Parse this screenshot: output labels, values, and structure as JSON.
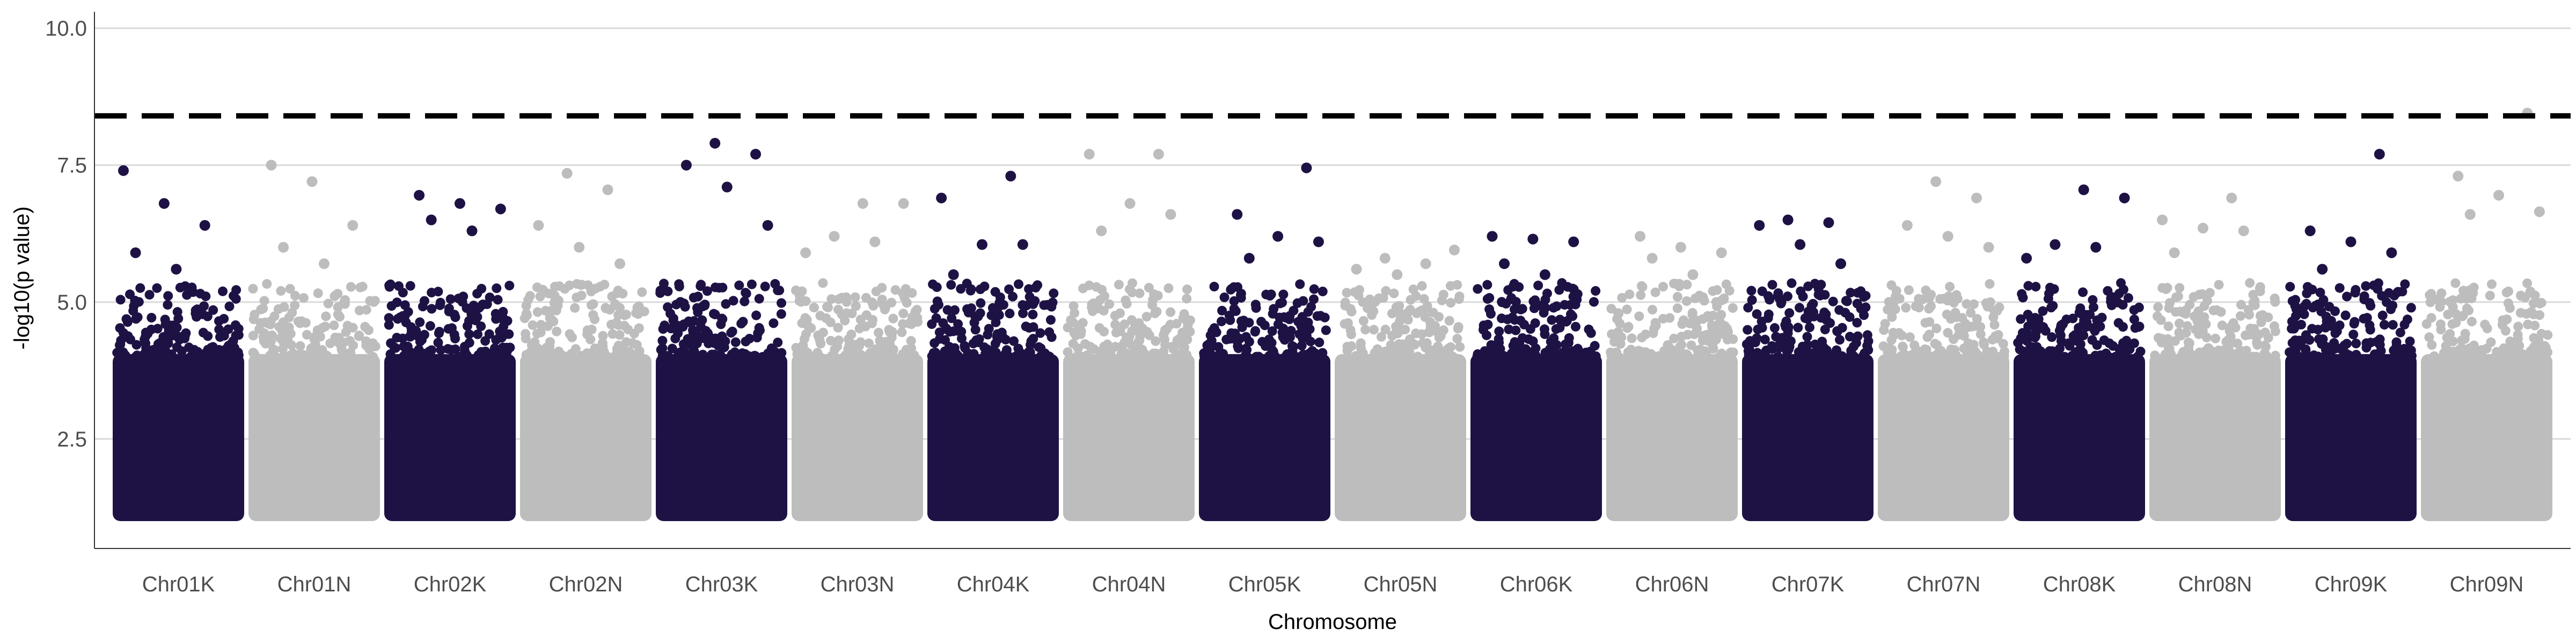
{
  "chart_data": {
    "type": "scatter",
    "subtype": "manhattan",
    "xlabel": "Chromosome",
    "ylabel": "-log10(p value)",
    "ylim": [
      0.5,
      10.3
    ],
    "yticks": [
      "2.5",
      "5.0",
      "7.5",
      "10.0"
    ],
    "ytick_values": [
      2.5,
      5.0,
      7.5,
      10.0
    ],
    "threshold": 8.4,
    "threshold_style": "dashed",
    "grid": "horizontal major",
    "legend": "none",
    "colors": {
      "dark": "#1e1245",
      "light": "#bdbdbd",
      "threshold": "#000000",
      "grid": "#d9d9d9"
    },
    "chromosomes": [
      {
        "name": "Chr01K",
        "color": "dark",
        "top_points": [
          7.4,
          6.8,
          6.4,
          5.9,
          5.6
        ]
      },
      {
        "name": "Chr01N",
        "color": "light",
        "top_points": [
          7.5,
          7.2,
          6.4,
          6.0,
          5.7
        ]
      },
      {
        "name": "Chr02K",
        "color": "dark",
        "top_points": [
          6.95,
          6.8,
          6.7,
          6.5,
          6.3
        ]
      },
      {
        "name": "Chr02N",
        "color": "light",
        "top_points": [
          7.35,
          7.05,
          6.4,
          6.0,
          5.7
        ]
      },
      {
        "name": "Chr03K",
        "color": "dark",
        "top_points": [
          7.9,
          7.7,
          7.5,
          7.1,
          6.4
        ]
      },
      {
        "name": "Chr03N",
        "color": "light",
        "top_points": [
          6.8,
          6.8,
          6.2,
          6.1,
          5.9
        ]
      },
      {
        "name": "Chr04K",
        "color": "dark",
        "top_points": [
          7.3,
          6.9,
          6.05,
          6.05,
          5.5
        ]
      },
      {
        "name": "Chr04N",
        "color": "light",
        "top_points": [
          7.7,
          7.7,
          6.8,
          6.6,
          6.3
        ]
      },
      {
        "name": "Chr05K",
        "color": "dark",
        "top_points": [
          7.45,
          6.6,
          6.2,
          6.1,
          5.8
        ]
      },
      {
        "name": "Chr05N",
        "color": "light",
        "top_points": [
          5.95,
          5.8,
          5.7,
          5.6,
          5.5
        ]
      },
      {
        "name": "Chr06K",
        "color": "dark",
        "top_points": [
          6.2,
          6.15,
          6.1,
          5.7,
          5.5
        ]
      },
      {
        "name": "Chr06N",
        "color": "light",
        "top_points": [
          6.2,
          6.0,
          5.9,
          5.8,
          5.5
        ]
      },
      {
        "name": "Chr07K",
        "color": "dark",
        "top_points": [
          6.5,
          6.45,
          6.4,
          6.05,
          5.7
        ]
      },
      {
        "name": "Chr07N",
        "color": "light",
        "top_points": [
          7.2,
          6.9,
          6.4,
          6.2,
          6.0
        ]
      },
      {
        "name": "Chr08K",
        "color": "dark",
        "top_points": [
          7.05,
          6.9,
          6.05,
          6.0,
          5.8
        ]
      },
      {
        "name": "Chr08N",
        "color": "light",
        "top_points": [
          6.9,
          6.5,
          6.35,
          6.3,
          5.9
        ]
      },
      {
        "name": "Chr09K",
        "color": "dark",
        "top_points": [
          7.7,
          6.3,
          6.1,
          5.9,
          5.6
        ]
      },
      {
        "name": "Chr09N",
        "color": "light",
        "top_points": [
          8.45,
          7.3,
          6.95,
          6.65,
          6.6
        ]
      }
    ]
  }
}
